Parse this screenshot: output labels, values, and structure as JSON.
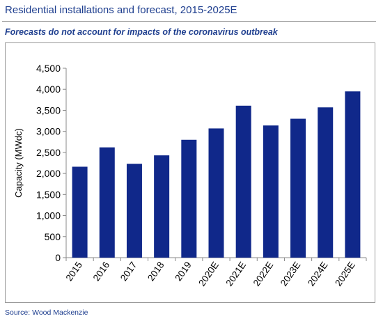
{
  "header": {
    "title": "Residential installations and forecast, 2015-2025E",
    "subtitle": "Forecasts do not account for impacts of the coronavirus outbreak"
  },
  "footer": {
    "source": "Source: Wood Mackenzie"
  },
  "colors": {
    "bar": "#10288a",
    "title": "#1f3f8f",
    "axis": "#888888"
  },
  "chart_data": {
    "type": "bar",
    "title": "",
    "xlabel": "",
    "ylabel": "Capacity (MWdc)",
    "categories": [
      "2015",
      "2016",
      "2017",
      "2018",
      "2019",
      "2020E",
      "2021E",
      "2022E",
      "2023E",
      "2024E",
      "2025E"
    ],
    "values": [
      2160,
      2620,
      2230,
      2430,
      2800,
      3070,
      3610,
      3140,
      3300,
      3570,
      3950
    ],
    "ylim": [
      0,
      4500
    ],
    "yticks": [
      0,
      500,
      1000,
      1500,
      2000,
      2500,
      3000,
      3500,
      4000,
      4500
    ],
    "ytick_labels": [
      "0",
      "500",
      "1,000",
      "1,500",
      "2,000",
      "2,500",
      "3,000",
      "3,500",
      "4,000",
      "4,500"
    ],
    "grid": false,
    "legend": "none"
  }
}
